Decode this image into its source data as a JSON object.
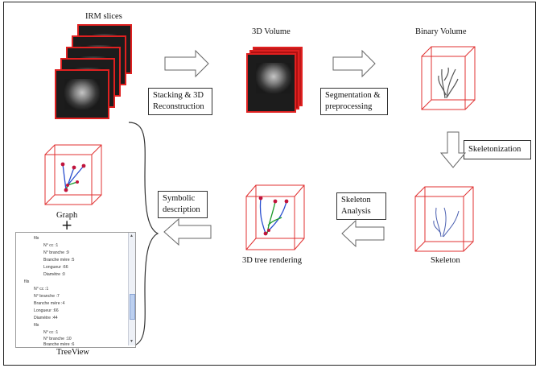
{
  "labels": {
    "irm_slices": "IRM slices",
    "volume_3d": "3D Volume",
    "binary_volume": "Binary Volume",
    "graph": "Graph",
    "plus": "+",
    "tree_rendering": "3D tree rendering",
    "skeleton": "Skeleton",
    "treeview": "TreeView"
  },
  "steps": {
    "stacking_line1": "Stacking & 3D",
    "stacking_line2": "Reconstruction",
    "segmentation_line1": "Segmentation &",
    "segmentation_line2": "preprocessing",
    "skeletonization": "Skeletonization",
    "skeleton_analysis_line1": "Skeleton",
    "skeleton_analysis_line2": "Analysis",
    "symbolic_line1": "Symbolic",
    "symbolic_line2": "description"
  },
  "treeview_rows": [
    "fils",
    "N° cc :1",
    "N° branche :9",
    "Branche mère :5",
    "Longueur :66",
    "Diamètre :0",
    "fils",
    "N° cc :1",
    "N° branche :7",
    "Branche mère :4",
    "Longueur :66",
    "Diamètre :44",
    "fils",
    "N° cc :1",
    "N° branche :10",
    "Branche mère :6"
  ],
  "colors": {
    "cube_edge": "#e03030",
    "mri_border": "#e02020",
    "node": "#c0143c",
    "branch_blue": "#2a4fcf",
    "branch_green": "#1a9a2a",
    "skeleton_blue": "#4a5fb0"
  }
}
